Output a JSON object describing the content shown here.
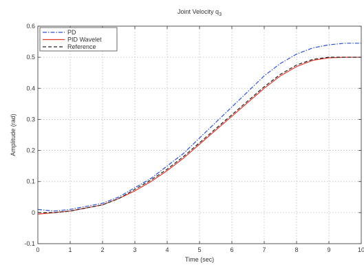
{
  "chart_data": {
    "type": "line",
    "title": "Joint Velocity q",
    "title_subscript": "3",
    "xlabel": "Time (sec)",
    "ylabel": "Amplitude (rad)",
    "xlim": [
      0,
      10
    ],
    "ylim": [
      -0.1,
      0.6
    ],
    "xticks": [
      0,
      1,
      2,
      3,
      4,
      5,
      6,
      7,
      8,
      9,
      10
    ],
    "yticks": [
      -0.1,
      0,
      0.1,
      0.2,
      0.3,
      0.4,
      0.5,
      0.6
    ],
    "ytick_labels": [
      "-0.1",
      "0",
      "0.1",
      "0.2",
      "0.3",
      "0.4",
      "0.5",
      "0.6"
    ],
    "grid": true,
    "legend_position": "top-left",
    "x": [
      0,
      0.5,
      1,
      1.5,
      2,
      2.5,
      3,
      3.5,
      4,
      4.5,
      5,
      5.5,
      6,
      6.5,
      7,
      7.5,
      8,
      8.5,
      9,
      9.5,
      10
    ],
    "series": [
      {
        "name": "PD",
        "color": "#2d4fd6",
        "dash": "6 2 1.5 2",
        "values": [
          0.01,
          0.005,
          0.01,
          0.02,
          0.03,
          0.05,
          0.08,
          0.11,
          0.15,
          0.19,
          0.24,
          0.29,
          0.34,
          0.39,
          0.44,
          0.48,
          0.51,
          0.53,
          0.54,
          0.545,
          0.545
        ]
      },
      {
        "name": "PID Wavelet",
        "color": "#e03a2e",
        "dash": "",
        "values": [
          -0.005,
          0.0,
          0.005,
          0.015,
          0.025,
          0.045,
          0.07,
          0.1,
          0.135,
          0.175,
          0.22,
          0.265,
          0.31,
          0.355,
          0.4,
          0.44,
          0.47,
          0.49,
          0.498,
          0.5,
          0.5
        ]
      },
      {
        "name": "Reference",
        "color": "#222222",
        "dash": "5 3",
        "values": [
          0.0,
          0.0,
          0.005,
          0.015,
          0.025,
          0.045,
          0.075,
          0.105,
          0.14,
          0.18,
          0.225,
          0.27,
          0.315,
          0.36,
          0.405,
          0.445,
          0.475,
          0.493,
          0.5,
          0.5,
          0.5
        ]
      }
    ]
  }
}
